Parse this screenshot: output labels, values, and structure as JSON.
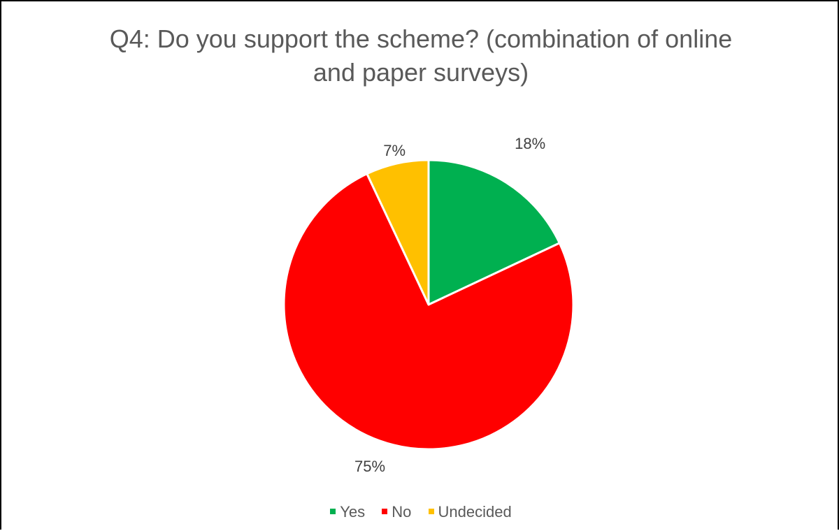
{
  "chart_data": {
    "type": "pie",
    "title": "Q4: Do you support the scheme? (combination of online and paper surveys)",
    "categories": [
      "Yes",
      "No",
      "Undecided"
    ],
    "values": [
      18,
      75,
      7
    ],
    "data_labels": [
      "18%",
      "75%",
      "7%"
    ],
    "colors": [
      "#00B050",
      "#FF0000",
      "#FFC000"
    ],
    "legend_position": "bottom",
    "start_angle": "12 o'clock",
    "direction": "clockwise"
  }
}
